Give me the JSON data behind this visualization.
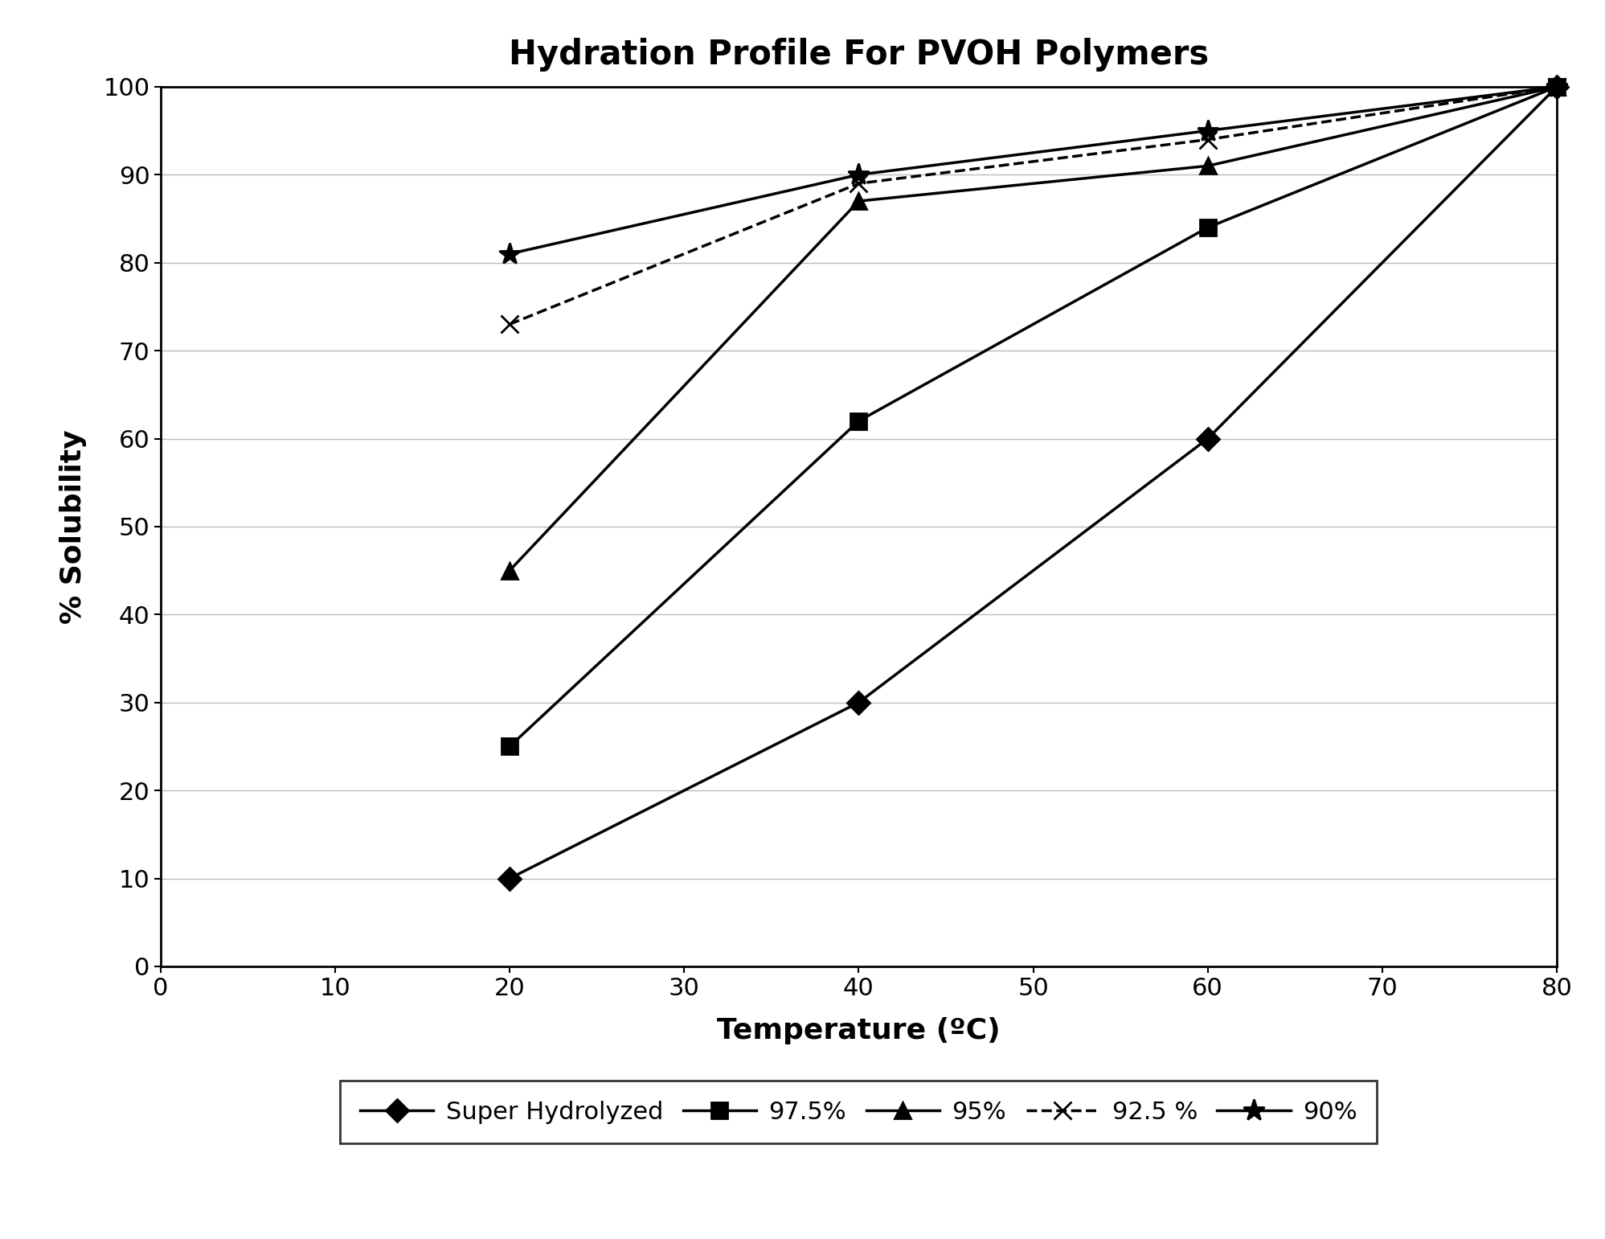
{
  "title": "Hydration Profile For PVOH Polymers",
  "xlabel": "Temperature (ºC)",
  "ylabel": "% Solubility",
  "xlim": [
    0,
    80
  ],
  "ylim": [
    0,
    100
  ],
  "xticks": [
    0,
    10,
    20,
    30,
    40,
    50,
    60,
    70,
    80
  ],
  "yticks": [
    0,
    10,
    20,
    30,
    40,
    50,
    60,
    70,
    80,
    90,
    100
  ],
  "series": [
    {
      "label": "Super Hydrolyzed",
      "x": [
        20,
        40,
        60,
        80
      ],
      "y": [
        10,
        30,
        60,
        100
      ],
      "marker": "D",
      "linestyle": "-",
      "color": "#000000",
      "markersize": 14,
      "linewidth": 2.5
    },
    {
      "label": "97.5%",
      "x": [
        20,
        40,
        60,
        80
      ],
      "y": [
        25,
        62,
        84,
        100
      ],
      "marker": "s",
      "linestyle": "-",
      "color": "#000000",
      "markersize": 14,
      "linewidth": 2.5
    },
    {
      "label": "95%",
      "x": [
        20,
        40,
        60,
        80
      ],
      "y": [
        45,
        87,
        91,
        100
      ],
      "marker": "^",
      "linestyle": "-",
      "color": "#000000",
      "markersize": 14,
      "linewidth": 2.5
    },
    {
      "label": "92.5 %",
      "x": [
        20,
        40,
        60,
        80
      ],
      "y": [
        73,
        89,
        94,
        100
      ],
      "marker": "x",
      "linestyle": "--",
      "color": "#000000",
      "markersize": 16,
      "linewidth": 2.5
    },
    {
      "label": "90%",
      "x": [
        20,
        40,
        60,
        80
      ],
      "y": [
        81,
        90,
        95,
        100
      ],
      "marker": "*",
      "linestyle": "-",
      "color": "#000000",
      "markersize": 20,
      "linewidth": 2.5
    }
  ],
  "background_color": "#ffffff",
  "title_fontsize": 30,
  "axis_label_fontsize": 26,
  "tick_fontsize": 22,
  "legend_fontsize": 22,
  "grid_color": "#bbbbbb",
  "grid_linewidth": 1.0
}
